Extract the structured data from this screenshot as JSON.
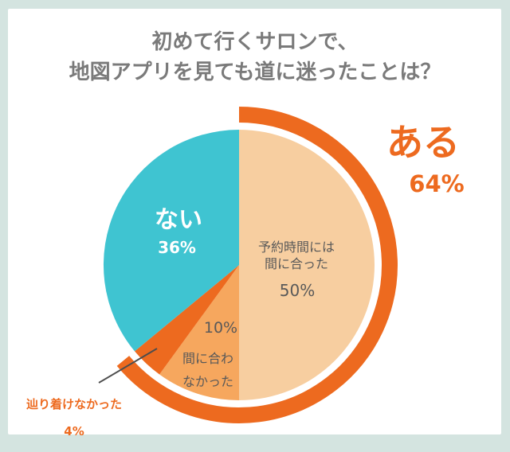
{
  "colors": {
    "frame_background": "#D4E4E0",
    "card_background": "#FFFFFF",
    "title_text": "#7A7A7A",
    "accent_orange": "#ED6A1F",
    "teal": "#3FC4D1",
    "slice_text_gray": "#595959",
    "leader_line": "#4D4D4D"
  },
  "chart_data": {
    "type": "pie",
    "title": "初めて行くサロンで、\n地図アプリを見ても道に迷ったことは？",
    "start": "12-oclock",
    "direction": "clockwise",
    "slices": [
      {
        "label": "予約時間には\n間に合った",
        "value": 50,
        "pct_text": "50%",
        "color": "#F7CEA0"
      },
      {
        "label": "間に合わ\nなかった",
        "value": 10,
        "pct_text": "10%",
        "color": "#F6A75E"
      },
      {
        "label": "辿り着けなかった",
        "value": 4,
        "pct_text": "4%",
        "color": "#ED6A1F"
      },
      {
        "label": "ない",
        "value": 36,
        "pct_text": "36%",
        "color": "#3FC4D1"
      }
    ],
    "outer_group": {
      "label": "ある",
      "value": 64,
      "pct_text": "64%",
      "color": "#ED6A1F"
    }
  }
}
